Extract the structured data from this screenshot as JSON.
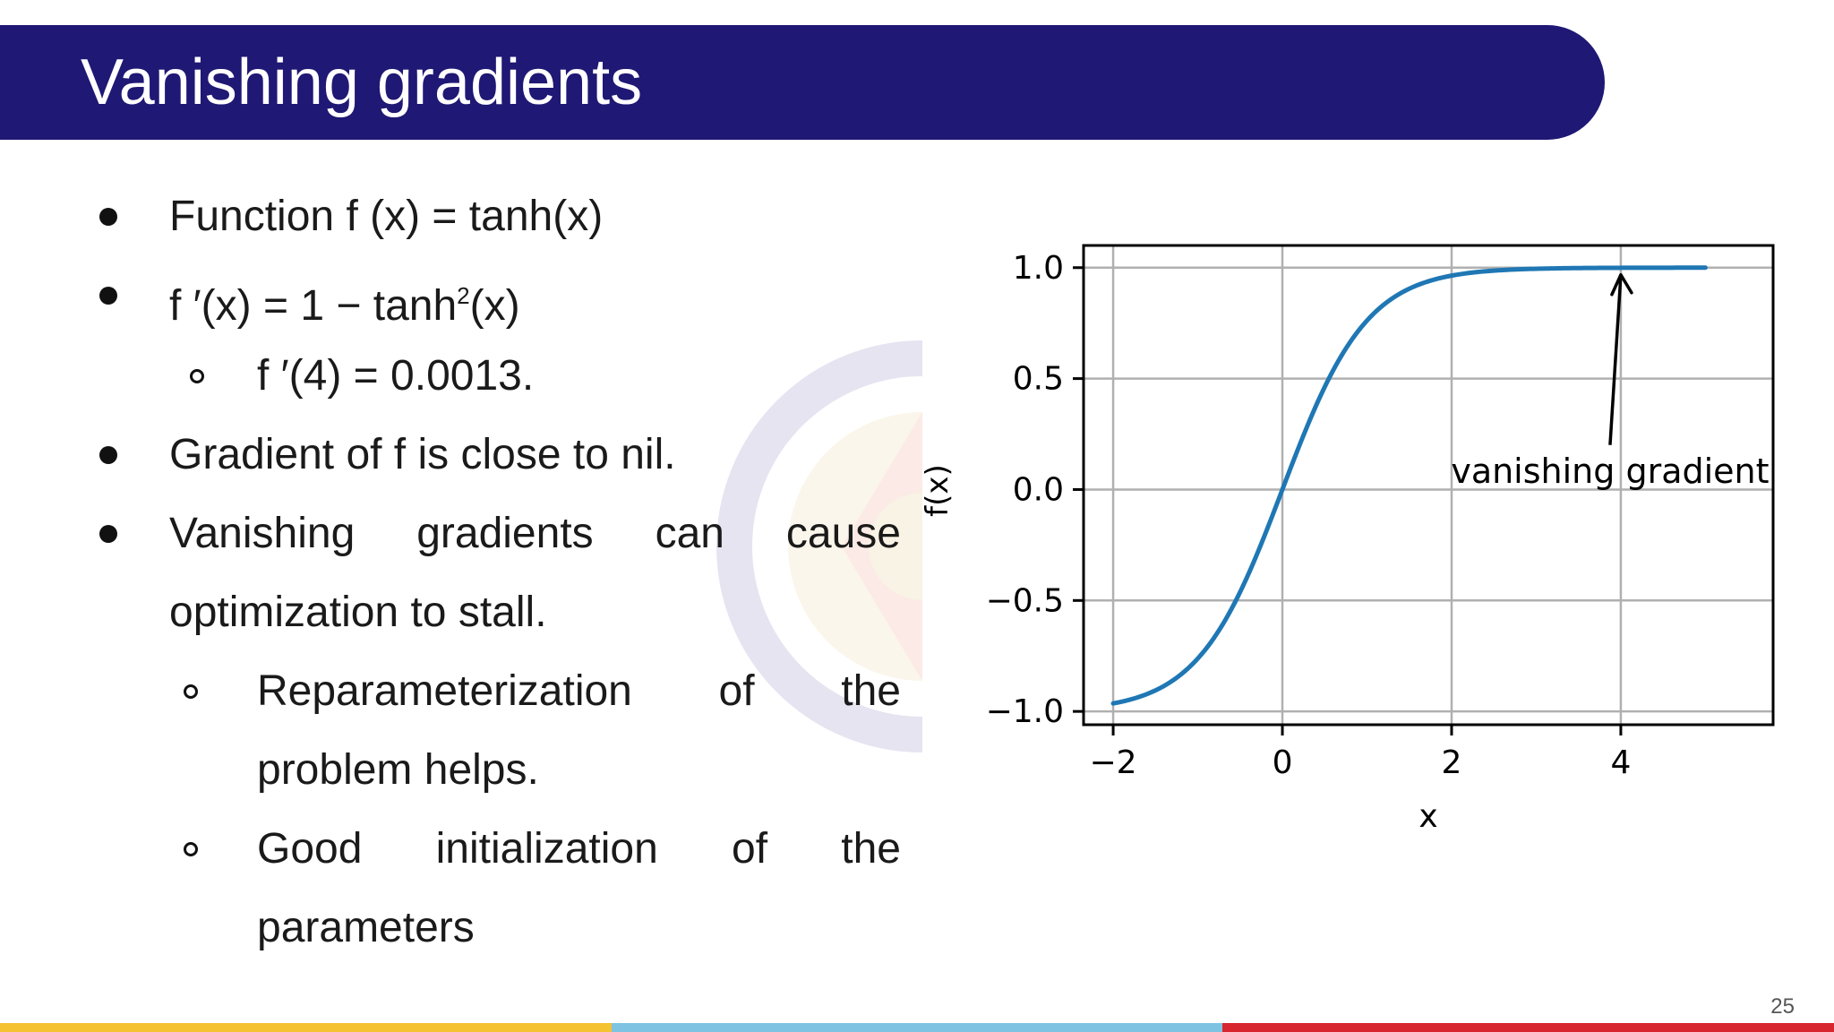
{
  "slide": {
    "title": "Vanishing gradients",
    "page_number": "25"
  },
  "bullets": {
    "b1": "Function f (x) = tanh(x)",
    "b2_pre": "f ′(x) = 1 − tanh",
    "b2_sup": "2",
    "b2_post": "(x)",
    "b3": "f ′(4) = 0.0013.",
    "b4": "Gradient of f is close to nil.",
    "b5_words": [
      "Vanishing",
      "gradients",
      "can",
      "cause"
    ],
    "b5_cont": "optimization to stall.",
    "b6_words": [
      "Reparameterization",
      "of",
      "the"
    ],
    "b6_cont": "problem helps.",
    "b7_words": [
      "Good",
      "initialization",
      "of",
      "the"
    ],
    "b7_cont": "parameters"
  },
  "colors": {
    "title_bar": "#1f1874",
    "curve": "#1f77b4",
    "strip_yellow": "#f5c232",
    "strip_blue": "#7ec4e2",
    "strip_red": "#d7262e"
  },
  "chart_data": {
    "type": "line",
    "xlabel": "x",
    "ylabel": "f(x)",
    "xlim": [
      -2.35,
      5.8
    ],
    "ylim": [
      -1.06,
      1.1
    ],
    "xticks": [
      -2,
      0,
      2,
      4
    ],
    "xtick_labels": [
      "−2",
      "0",
      "2",
      "4"
    ],
    "yticks": [
      -1.0,
      -0.5,
      0.0,
      0.5,
      1.0
    ],
    "ytick_labels": [
      "−1.0",
      "−0.5",
      "0.0",
      "0.5",
      "1.0"
    ],
    "grid": true,
    "series": [
      {
        "function": "tanh(x)",
        "x_range": [
          -2,
          5
        ],
        "x": [
          -2,
          -1.5,
          -1,
          -0.5,
          0,
          0.5,
          1,
          1.5,
          2,
          3,
          4,
          5
        ],
        "y": [
          -0.964,
          -0.905,
          -0.762,
          -0.462,
          0,
          0.462,
          0.762,
          0.905,
          0.964,
          0.995,
          0.999,
          1.0
        ]
      }
    ],
    "annotation": {
      "text": "vanishing gradient",
      "points_to": [
        4,
        1.0
      ]
    }
  }
}
